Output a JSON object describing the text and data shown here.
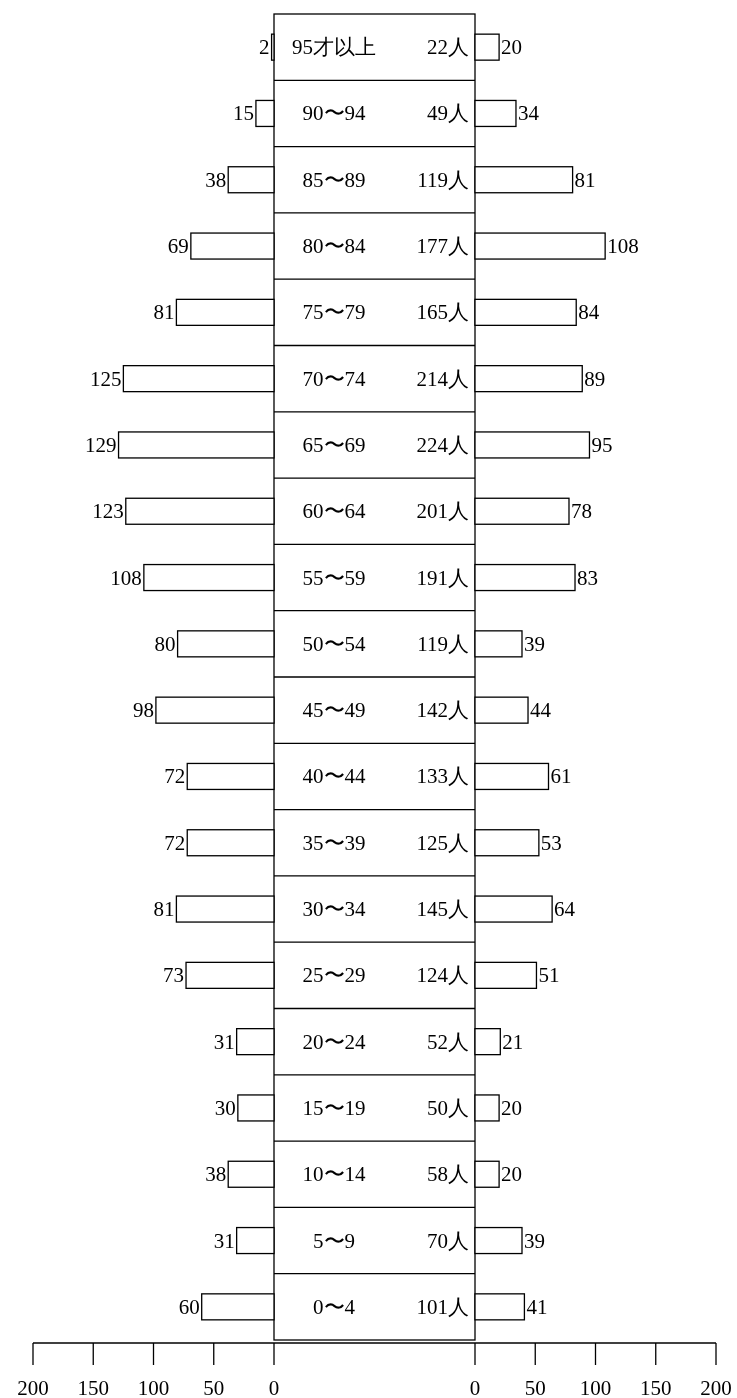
{
  "chart_data": [
    {
      "type": "bar",
      "orientation": "horizontal",
      "color": "#ffffff",
      "data_labels": true,
      "categories": [
        "95才以上",
        "90〜94",
        "85〜89",
        "80〜84",
        "75〜79",
        "70〜74",
        "65〜69",
        "60〜64",
        "55〜59",
        "50〜54",
        "45〜49",
        "40〜44",
        "35〜39",
        "30〜34",
        "25〜29",
        "20〜24",
        "15〜19",
        "10〜14",
        "5〜9",
        "0〜4"
      ],
      "values": [
        2,
        15,
        38,
        69,
        81,
        125,
        129,
        123,
        108,
        80,
        98,
        72,
        72,
        81,
        73,
        31,
        30,
        38,
        31,
        60
      ],
      "xlim": [
        200,
        0
      ],
      "xticks": [
        200,
        150,
        100,
        50,
        0
      ]
    },
    {
      "type": "bar",
      "orientation": "horizontal",
      "color": "#ffffff",
      "data_labels": true,
      "categories": [
        null,
        null,
        null,
        null,
        null,
        null,
        null,
        null,
        null,
        null,
        null,
        null,
        null,
        null,
        null,
        null,
        null,
        null,
        null,
        null
      ],
      "values": [
        20,
        34,
        81,
        108,
        84,
        89,
        95,
        78,
        83,
        39,
        44,
        61,
        53,
        64,
        51,
        21,
        20,
        20,
        39,
        41
      ],
      "annotations": [
        "22人",
        "49人",
        "119人",
        "177人",
        "165人",
        "214人",
        "224人",
        "201人",
        "191人",
        "119人",
        "142人",
        "133人",
        "125人",
        "145人",
        "124人",
        "52人",
        "50人",
        "58人",
        "70人",
        "101人"
      ],
      "xlim": [
        0,
        200
      ],
      "xticks": [
        0,
        50,
        100,
        150,
        200
      ]
    }
  ]
}
